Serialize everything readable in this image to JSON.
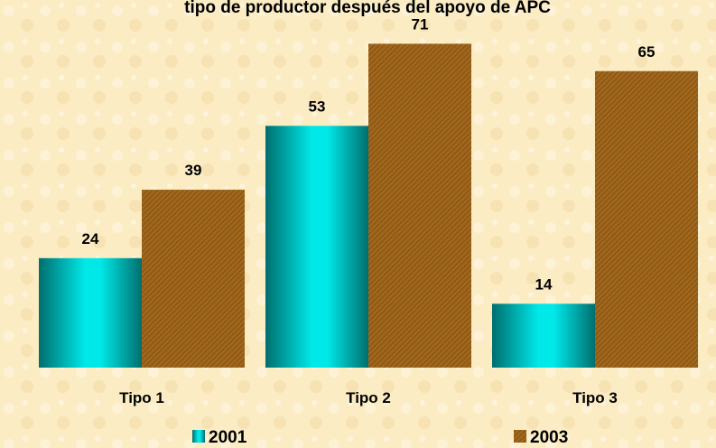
{
  "chart_data": {
    "type": "bar",
    "title": "tipo de productor después del apoyo de APC",
    "categories": [
      "Tipo 1",
      "Tipo 2",
      "Tipo 3"
    ],
    "series": [
      {
        "name": "2001",
        "color": "#00e8e8",
        "values": [
          24,
          53,
          14
        ]
      },
      {
        "name": "2003",
        "color": "#a0661c",
        "values": [
          39,
          71,
          65
        ]
      }
    ],
    "legend": "bottom"
  }
}
